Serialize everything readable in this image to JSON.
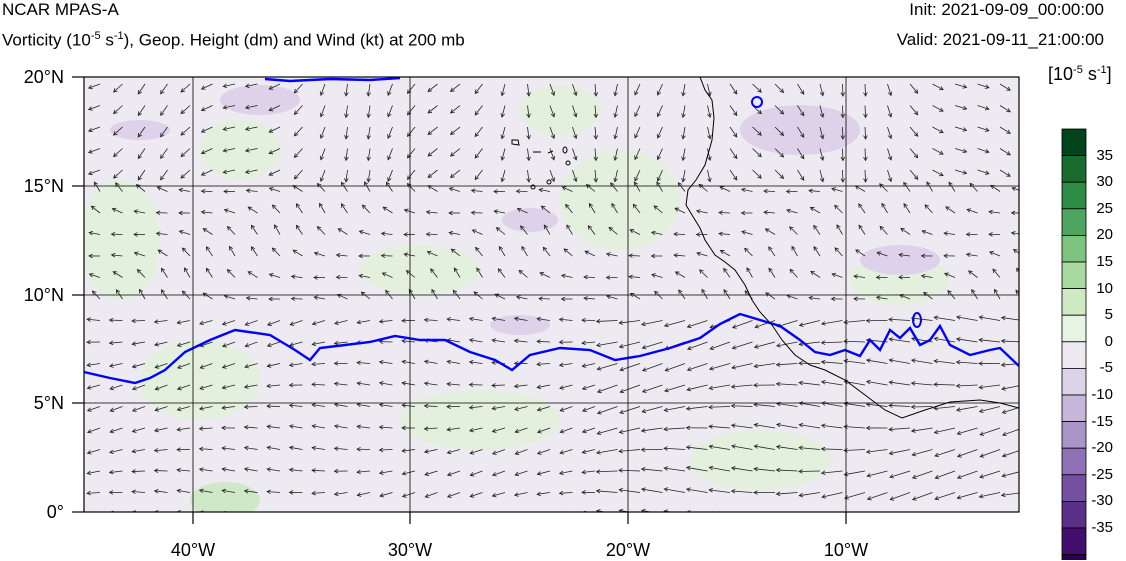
{
  "header": {
    "model": "NCAR MPAS-A",
    "title_prefix": "Vorticity (10",
    "title_exp": "-5",
    "title_mid": " s",
    "title_exp2": "-1",
    "title_suffix": "), Geop. Height (dm) and Wind (kt) at 200 mb",
    "init": "Init: 2021-09-09_00:00:00",
    "valid": "Valid: 2021-09-11_21:00:00"
  },
  "map": {
    "lon_range": [
      -45,
      -2
    ],
    "lat_range": [
      0,
      20
    ],
    "lat_labels": [
      "20°N",
      "15°N",
      "10°N",
      "5°N",
      "0°"
    ],
    "lon_labels": [
      "40°W",
      "30°W",
      "20°W",
      "10°W"
    ],
    "background_color": "#eeeaf1",
    "contour_color": "#0000ff",
    "coast_color": "#000000"
  },
  "colorbar": {
    "unit_prefix": "[10",
    "unit_exp": "-5",
    "unit_mid": " s",
    "unit_exp2": "-1",
    "unit_suffix": "]",
    "labels": [
      "35",
      "30",
      "25",
      "20",
      "15",
      "10",
      "5",
      "0",
      "-5",
      "-10",
      "-15",
      "-20",
      "-25",
      "-30",
      "-35"
    ],
    "colors": [
      "#00441b",
      "#1a6b2e",
      "#2e8b45",
      "#4ea55f",
      "#7ec480",
      "#a8d9a0",
      "#cdeac3",
      "#e8f4e3",
      "#eeeaf1",
      "#dcd3e8",
      "#c5b6da",
      "#aa95c8",
      "#8f72b5",
      "#74509f",
      "#5a2f88",
      "#430f6f",
      "#2a0052"
    ]
  }
}
